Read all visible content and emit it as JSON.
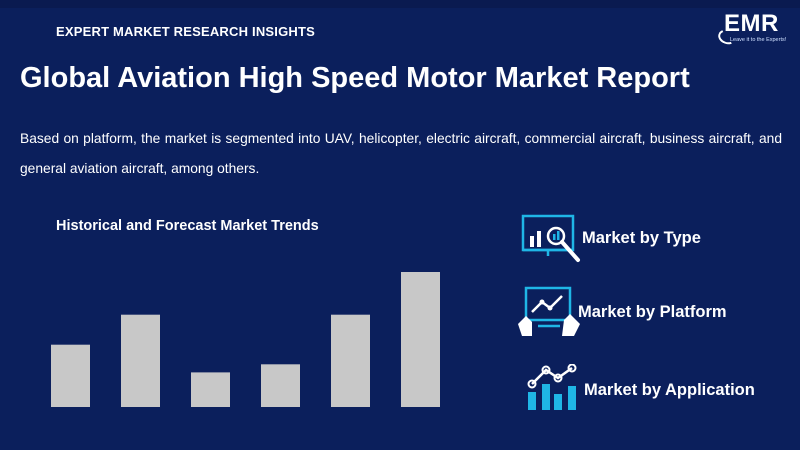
{
  "header": {
    "kicker": "EXPERT MARKET RESEARCH INSIGHTS",
    "logo_text": "EMR",
    "logo_tagline": "Leave it to the Experts!"
  },
  "title": "Global Aviation High Speed Motor Market Report",
  "description": "Based on platform, the market is segmented into UAV, helicopter, electric aircraft, commercial aircraft, business aircraft, and general aviation aircraft, among others.",
  "colors": {
    "background": "#0b1f5c",
    "bar": "#c8c8c8",
    "icon_accent": "#1fb6e6",
    "text": "#ffffff"
  },
  "chart_data": {
    "type": "bar",
    "title": "Historical and Forecast Market Trends",
    "categories": [
      "",
      "",
      "",
      "",
      "",
      ""
    ],
    "values": [
      54,
      80,
      30,
      37,
      80,
      117
    ],
    "ylim": [
      0,
      130
    ],
    "grid": false,
    "axis_labels_shown": false
  },
  "legend": [
    {
      "label": "Market by Type",
      "icon": "magnifier-chart-icon"
    },
    {
      "label": "Market by Platform",
      "icon": "touch-chart-icon"
    },
    {
      "label": "Market by Application",
      "icon": "bar-line-chart-icon"
    }
  ]
}
